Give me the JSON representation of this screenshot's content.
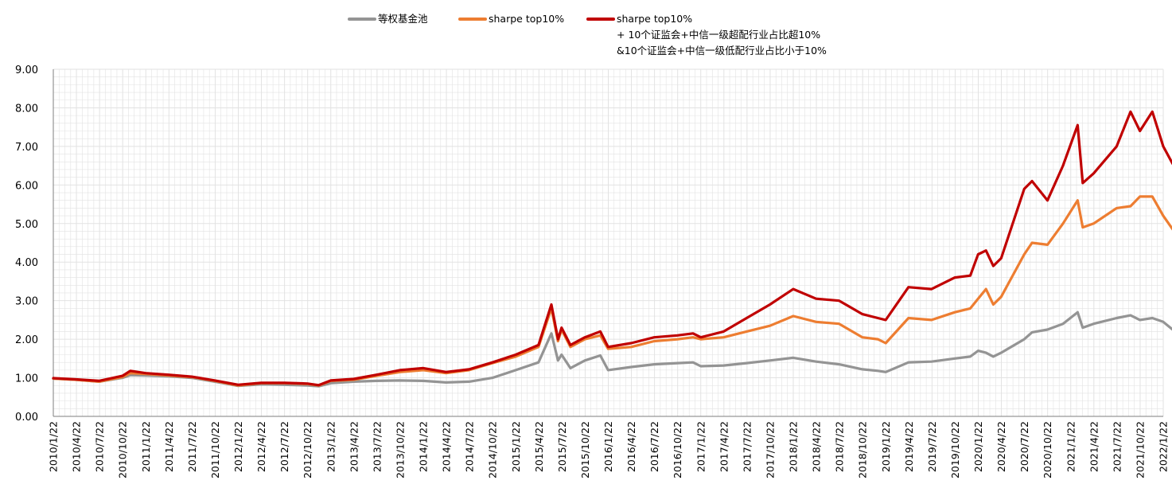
{
  "colors": {
    "equal": "#949494",
    "sharpe": "#ed7d31",
    "combo": "#c00000",
    "grid": "#e2e2e2",
    "axis": "#7f7f7f"
  },
  "legend": {
    "equal": "等权基金池",
    "sharpe": "sharpe top10%",
    "combo_line1": "sharpe top10%",
    "combo_line2": "+ 10个证监会+中信一级超配行业占比超10%",
    "combo_line3": "&10个证监会+中信一级低配行业占比小于10%"
  },
  "chart_data": {
    "type": "line",
    "title": "",
    "xlabel": "",
    "ylabel": "",
    "ylim": [
      0,
      9
    ],
    "yticks": [
      "0.00",
      "1.00",
      "2.00",
      "3.00",
      "4.00",
      "5.00",
      "6.00",
      "7.00",
      "8.00",
      "9.00"
    ],
    "xticks": [
      "2010/1/22",
      "2010/4/22",
      "2010/7/22",
      "2010/10/22",
      "2011/1/22",
      "2011/4/22",
      "2011/7/22",
      "2011/10/22",
      "2012/1/22",
      "2012/4/22",
      "2012/7/22",
      "2012/10/22",
      "2013/1/22",
      "2013/4/22",
      "2013/7/22",
      "2013/10/22",
      "2014/1/22",
      "2014/4/22",
      "2014/7/22",
      "2014/10/22",
      "2015/1/22",
      "2015/4/22",
      "2015/7/22",
      "2015/10/22",
      "2016/1/22",
      "2016/4/22",
      "2016/7/22",
      "2016/10/22",
      "2017/1/22",
      "2017/4/22",
      "2017/7/22",
      "2017/10/22",
      "2018/1/22",
      "2018/4/22",
      "2018/7/22",
      "2018/10/22",
      "2019/1/22",
      "2019/4/22",
      "2019/7/22",
      "2019/10/22",
      "2020/1/22",
      "2020/4/22",
      "2020/7/22",
      "2020/10/22",
      "2021/1/22",
      "2021/4/22",
      "2021/7/22",
      "2021/10/22",
      "2022/1/22"
    ],
    "x": [
      "2010/1/22",
      "2010/4/22",
      "2010/7/22",
      "2010/10/22",
      "2010/11/22",
      "2011/1/22",
      "2011/4/22",
      "2011/7/22",
      "2011/10/22",
      "2012/1/22",
      "2012/4/22",
      "2012/7/22",
      "2012/10/22",
      "2012/12/5",
      "2013/1/22",
      "2013/4/22",
      "2013/7/22",
      "2013/10/22",
      "2014/1/22",
      "2014/4/22",
      "2014/7/22",
      "2014/10/22",
      "2015/1/22",
      "2015/4/22",
      "2015/6/12",
      "2015/7/8",
      "2015/7/22",
      "2015/8/26",
      "2015/10/22",
      "2015/12/22",
      "2016/1/22",
      "2016/4/22",
      "2016/7/22",
      "2016/10/22",
      "2016/12/22",
      "2017/1/22",
      "2017/4/22",
      "2017/7/22",
      "2017/10/22",
      "2018/1/22",
      "2018/4/22",
      "2018/7/22",
      "2018/10/22",
      "2018/12/22",
      "2019/1/22",
      "2019/4/22",
      "2019/7/22",
      "2019/10/22",
      "2019/12/22",
      "2020/1/22",
      "2020/2/22",
      "2020/3/22",
      "2020/4/22",
      "2020/7/22",
      "2020/8/22",
      "2020/10/22",
      "2020/12/22",
      "2021/2/18",
      "2021/3/10",
      "2021/4/22",
      "2021/7/22",
      "2021/9/15",
      "2021/10/22",
      "2021/12/10",
      "2022/1/22",
      "2022/2/28"
    ],
    "series": [
      {
        "name": "等权基金池",
        "values": [
          0.98,
          0.95,
          0.9,
          1.0,
          1.07,
          1.06,
          1.04,
          1.0,
          0.9,
          0.79,
          0.83,
          0.82,
          0.8,
          0.78,
          0.86,
          0.9,
          0.92,
          0.93,
          0.92,
          0.88,
          0.9,
          1.0,
          1.2,
          1.4,
          2.15,
          1.45,
          1.6,
          1.25,
          1.45,
          1.58,
          1.2,
          1.28,
          1.35,
          1.38,
          1.4,
          1.3,
          1.32,
          1.38,
          1.45,
          1.52,
          1.42,
          1.35,
          1.22,
          1.18,
          1.15,
          1.4,
          1.42,
          1.5,
          1.55,
          1.7,
          1.65,
          1.55,
          1.65,
          2.0,
          2.18,
          2.25,
          2.4,
          2.7,
          2.3,
          2.4,
          2.55,
          2.62,
          2.5,
          2.55,
          2.45,
          2.25
        ]
      },
      {
        "name": "sharpe top10%",
        "values": [
          0.98,
          0.95,
          0.9,
          1.02,
          1.12,
          1.1,
          1.06,
          1.02,
          0.92,
          0.8,
          0.86,
          0.86,
          0.84,
          0.8,
          0.92,
          0.95,
          1.05,
          1.15,
          1.2,
          1.12,
          1.2,
          1.38,
          1.55,
          1.8,
          2.8,
          1.95,
          2.25,
          1.8,
          2.0,
          2.1,
          1.75,
          1.8,
          1.95,
          2.0,
          2.05,
          2.0,
          2.05,
          2.2,
          2.35,
          2.6,
          2.45,
          2.4,
          2.05,
          2.0,
          1.9,
          2.55,
          2.5,
          2.7,
          2.8,
          3.05,
          3.3,
          2.9,
          3.1,
          4.2,
          4.5,
          4.45,
          5.0,
          5.6,
          4.9,
          5.0,
          5.4,
          5.45,
          5.7,
          5.7,
          5.2,
          4.85
        ]
      },
      {
        "name": "sharpe top10% + 10个证监会+中信一级超配行业占比超10% &10个证监会+中信一级低配行业占比小于10%",
        "values": [
          0.99,
          0.96,
          0.92,
          1.05,
          1.18,
          1.12,
          1.08,
          1.03,
          0.93,
          0.82,
          0.87,
          0.87,
          0.85,
          0.81,
          0.93,
          0.97,
          1.08,
          1.2,
          1.25,
          1.15,
          1.22,
          1.4,
          1.6,
          1.85,
          2.9,
          2.0,
          2.3,
          1.85,
          2.05,
          2.2,
          1.8,
          1.9,
          2.05,
          2.1,
          2.15,
          2.05,
          2.2,
          2.55,
          2.9,
          3.3,
          3.05,
          3.0,
          2.65,
          2.55,
          2.5,
          3.35,
          3.3,
          3.6,
          3.65,
          4.2,
          4.3,
          3.9,
          4.1,
          5.9,
          6.1,
          5.6,
          6.5,
          7.55,
          6.05,
          6.3,
          7.0,
          7.9,
          7.4,
          7.9,
          7.0,
          6.55
        ]
      }
    ],
    "grid": true,
    "legend_position": "top"
  }
}
